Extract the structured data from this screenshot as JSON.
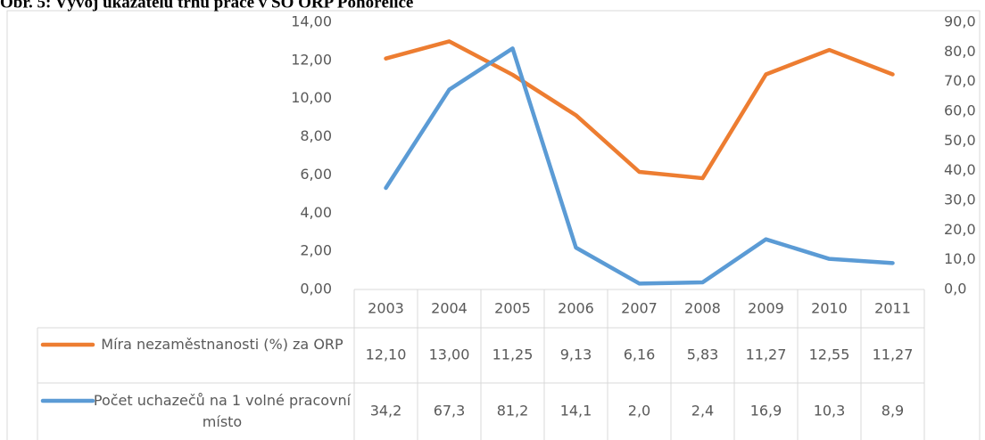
{
  "chart_data": {
    "type": "line",
    "title": "Obr. 5: Vývoj ukazatelů trhu práce v SO ORP Pohořelice",
    "categories": [
      "2003",
      "2004",
      "2005",
      "2006",
      "2007",
      "2008",
      "2009",
      "2010",
      "2011"
    ],
    "series": [
      {
        "name": "Míra nezaměstnanosti (%) za ORP",
        "color": "#ED7D31",
        "values": [
          12.1,
          13.0,
          11.25,
          9.13,
          6.16,
          5.83,
          11.27,
          12.55,
          11.27
        ],
        "value_labels": [
          "12,10",
          "13,00",
          "11,25",
          "9,13",
          "6,16",
          "5,83",
          "11,27",
          "12,55",
          "11,27"
        ]
      },
      {
        "name": "Počet uchazečů na 1 volné pracovní místo",
        "color": "#5B9BD5",
        "axis": "y2",
        "values": [
          34.2,
          67.3,
          81.2,
          14.1,
          2.0,
          2.4,
          16.9,
          10.3,
          8.9
        ],
        "value_labels": [
          "34,2",
          "67,3",
          "81,2",
          "14,1",
          "2,0",
          "2,4",
          "16,9",
          "10,3",
          "8,9"
        ]
      }
    ],
    "ylim": [
      0,
      14
    ],
    "yticks": [
      {
        "value": 0,
        "label": "0,00"
      },
      {
        "value": 2,
        "label": "2,00"
      },
      {
        "value": 4,
        "label": "4,00"
      },
      {
        "value": 6,
        "label": "6,00"
      },
      {
        "value": 8,
        "label": "8,00"
      },
      {
        "value": 10,
        "label": "10,00"
      },
      {
        "value": 12,
        "label": "12,00"
      },
      {
        "value": 14,
        "label": "14,00"
      }
    ],
    "y2lim": [
      0,
      90
    ],
    "y2ticks": [
      {
        "value": 0,
        "label": "0,0"
      },
      {
        "value": 10,
        "label": "10,0"
      },
      {
        "value": 20,
        "label": "20,0"
      },
      {
        "value": 30,
        "label": "30,0"
      },
      {
        "value": 40,
        "label": "40,0"
      },
      {
        "value": 50,
        "label": "50,0"
      },
      {
        "value": 60,
        "label": "60,0"
      },
      {
        "value": 70,
        "label": "70,0"
      },
      {
        "value": 80,
        "label": "80,0"
      },
      {
        "value": 90,
        "label": "90,0"
      }
    ]
  }
}
